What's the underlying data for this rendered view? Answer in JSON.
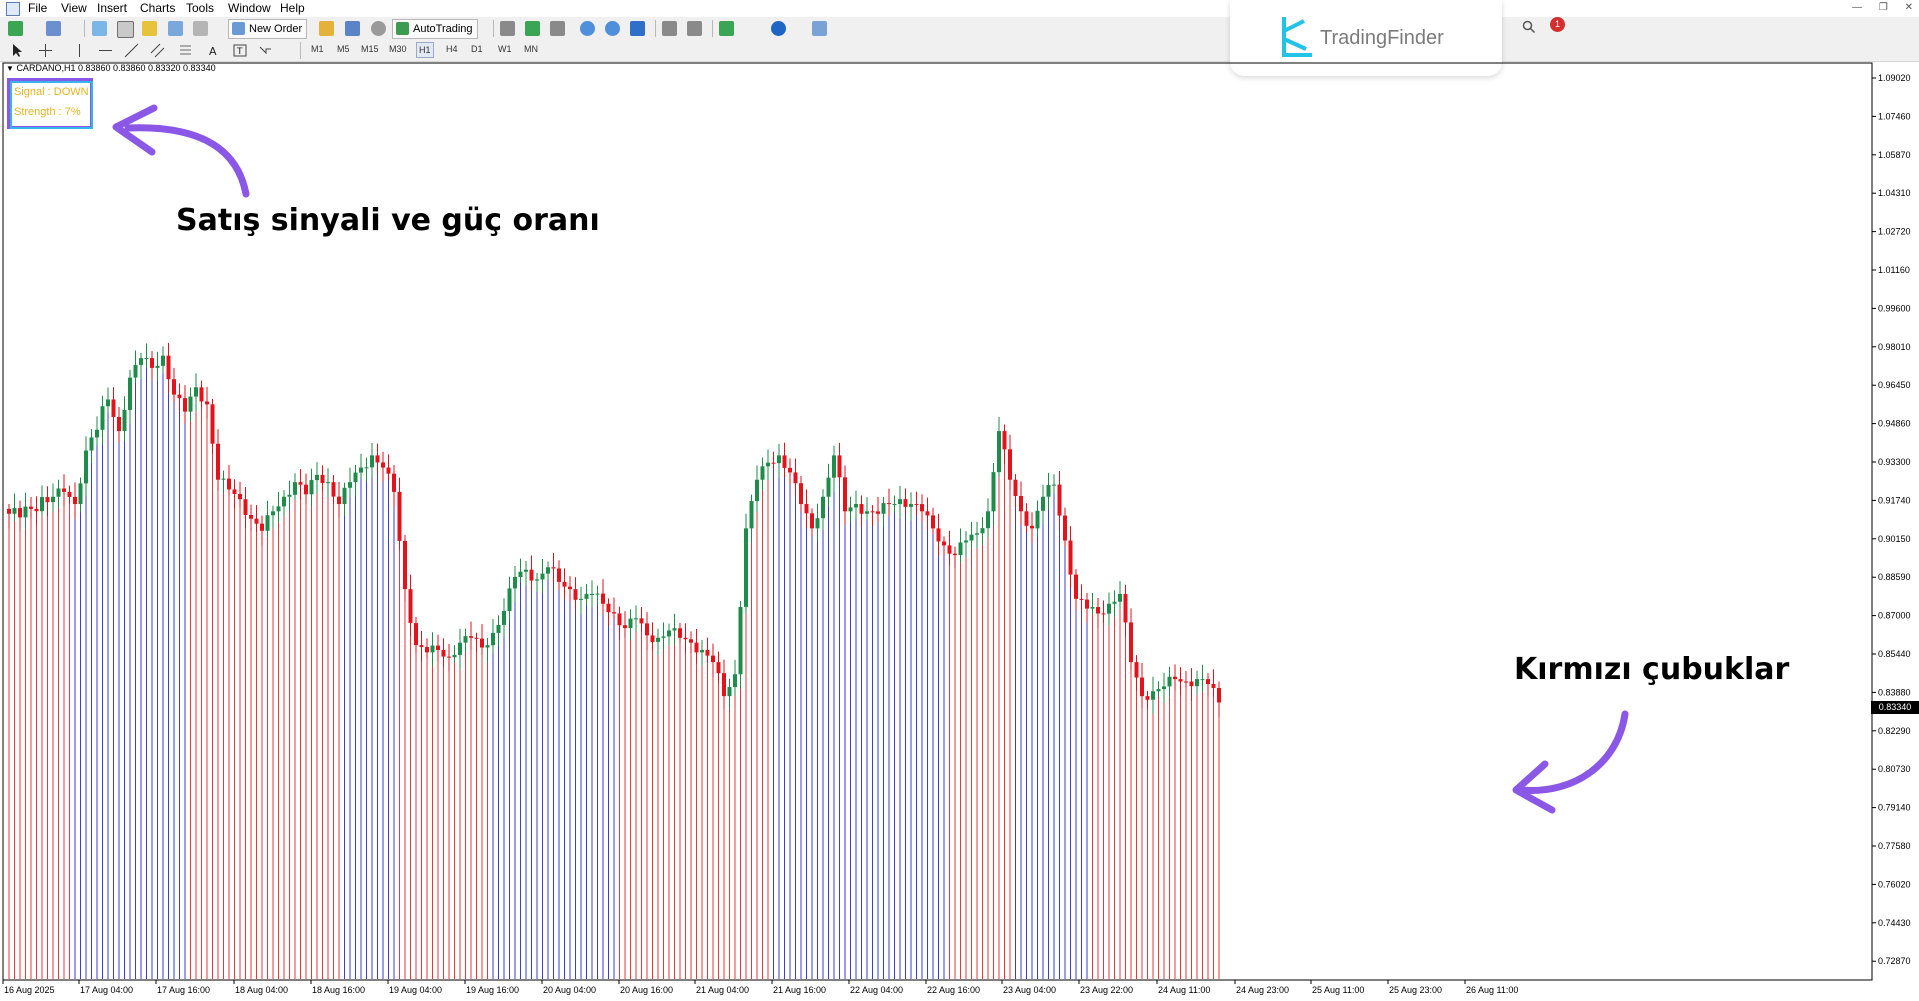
{
  "menu": {
    "items": [
      "File",
      "View",
      "Insert",
      "Charts",
      "Tools",
      "Window",
      "Help"
    ]
  },
  "toolbar": {
    "new_order_label": "New Order",
    "autotrading_label": "AutoTrading",
    "timeframes": [
      "M1",
      "M5",
      "M15",
      "M30",
      "H1",
      "H4",
      "D1",
      "W1",
      "MN"
    ],
    "active_timeframe": "H1"
  },
  "branding": {
    "logo_text": "TradingFinder"
  },
  "notifications": {
    "count": "1"
  },
  "chart": {
    "symbol_info": "CARDANO,H1  0.83860 0.83860 0.83320 0.83340",
    "current_price": "0.83340",
    "indicator": {
      "signal": "Signal : DOWN",
      "strength": "Strength : 7%"
    },
    "annotations": {
      "top": "Satış sinyali ve güç oranı",
      "right": "Kırmızı çubuklar"
    },
    "colors": {
      "bull_candle": "#1e8c4b",
      "bear_candle": "#e3121b",
      "blue_bars": "#3b3bd6",
      "red_bars": "#e8383b",
      "annotation_arrow": "#8b57e6",
      "indicator_text": "#e8b423"
    }
  },
  "chart_data": {
    "type": "candlestick",
    "y_ticks": [
      "1.09020",
      "1.07460",
      "1.05870",
      "1.04310",
      "1.02720",
      "1.01160",
      "0.99600",
      "0.98010",
      "0.96450",
      "0.94860",
      "0.93300",
      "0.91740",
      "0.90150",
      "0.88590",
      "0.87000",
      "0.85440",
      "0.83880",
      "0.82290",
      "0.80730",
      "0.79140",
      "0.77580",
      "0.76020",
      "0.74430",
      "0.72870"
    ],
    "x_ticks": [
      "16 Aug 2025",
      "17 Aug 04:00",
      "17 Aug 16:00",
      "18 Aug 04:00",
      "18 Aug 16:00",
      "19 Aug 04:00",
      "19 Aug 16:00",
      "20 Aug 04:00",
      "20 Aug 16:00",
      "21 Aug 04:00",
      "21 Aug 16:00",
      "22 Aug 04:00",
      "22 Aug 16:00",
      "23 Aug 04:00",
      "23 Aug 22:00",
      "24 Aug 11:00",
      "24 Aug 23:00",
      "25 Aug 11:00",
      "25 Aug 23:00",
      "26 Aug 11:00"
    ],
    "ylim": [
      0.7212,
      1.0948
    ],
    "anchor_closes": [
      [
        0,
        0.911
      ],
      [
        4,
        0.913
      ],
      [
        8,
        0.918
      ],
      [
        10,
        0.92
      ],
      [
        12,
        0.915
      ],
      [
        14,
        0.937
      ],
      [
        18,
        0.958
      ],
      [
        20,
        0.945
      ],
      [
        22,
        0.967
      ],
      [
        24,
        0.975
      ],
      [
        26,
        0.971
      ],
      [
        28,
        0.976
      ],
      [
        30,
        0.96
      ],
      [
        32,
        0.953
      ],
      [
        34,
        0.963
      ],
      [
        36,
        0.956
      ],
      [
        38,
        0.925
      ],
      [
        40,
        0.921
      ],
      [
        42,
        0.917
      ],
      [
        44,
        0.909
      ],
      [
        46,
        0.904
      ],
      [
        48,
        0.912
      ],
      [
        50,
        0.918
      ],
      [
        52,
        0.924
      ],
      [
        54,
        0.919
      ],
      [
        56,
        0.927
      ],
      [
        58,
        0.924
      ],
      [
        60,
        0.915
      ],
      [
        62,
        0.924
      ],
      [
        64,
        0.93
      ],
      [
        66,
        0.935
      ],
      [
        68,
        0.93
      ],
      [
        70,
        0.92
      ],
      [
        72,
        0.88
      ],
      [
        74,
        0.857
      ],
      [
        76,
        0.854
      ],
      [
        78,
        0.855
      ],
      [
        80,
        0.852
      ],
      [
        82,
        0.858
      ],
      [
        84,
        0.86
      ],
      [
        86,
        0.856
      ],
      [
        88,
        0.862
      ],
      [
        90,
        0.871
      ],
      [
        92,
        0.885
      ],
      [
        94,
        0.888
      ],
      [
        96,
        0.884
      ],
      [
        98,
        0.889
      ],
      [
        100,
        0.883
      ],
      [
        102,
        0.88
      ],
      [
        104,
        0.876
      ],
      [
        106,
        0.878
      ],
      [
        108,
        0.874
      ],
      [
        110,
        0.87
      ],
      [
        112,
        0.864
      ],
      [
        114,
        0.868
      ],
      [
        116,
        0.861
      ],
      [
        118,
        0.86
      ],
      [
        120,
        0.863
      ],
      [
        122,
        0.86
      ],
      [
        124,
        0.858
      ],
      [
        126,
        0.855
      ],
      [
        128,
        0.85
      ],
      [
        130,
        0.836
      ],
      [
        132,
        0.845
      ],
      [
        134,
        0.905
      ],
      [
        136,
        0.925
      ],
      [
        138,
        0.932
      ],
      [
        140,
        0.935
      ],
      [
        142,
        0.928
      ],
      [
        144,
        0.915
      ],
      [
        146,
        0.905
      ],
      [
        148,
        0.918
      ],
      [
        150,
        0.935
      ],
      [
        152,
        0.912
      ],
      [
        154,
        0.915
      ],
      [
        156,
        0.912
      ],
      [
        158,
        0.911
      ],
      [
        160,
        0.915
      ],
      [
        162,
        0.917
      ],
      [
        164,
        0.915
      ],
      [
        166,
        0.912
      ],
      [
        168,
        0.905
      ],
      [
        170,
        0.898
      ],
      [
        172,
        0.894
      ],
      [
        174,
        0.9
      ],
      [
        176,
        0.903
      ],
      [
        178,
        0.912
      ],
      [
        180,
        0.945
      ],
      [
        182,
        0.925
      ],
      [
        184,
        0.912
      ],
      [
        186,
        0.905
      ],
      [
        188,
        0.918
      ],
      [
        190,
        0.923
      ],
      [
        192,
        0.9
      ],
      [
        194,
        0.876
      ],
      [
        196,
        0.872
      ],
      [
        198,
        0.87
      ],
      [
        200,
        0.874
      ],
      [
        202,
        0.878
      ],
      [
        204,
        0.85
      ],
      [
        206,
        0.836
      ],
      [
        208,
        0.838
      ],
      [
        210,
        0.84
      ],
      [
        212,
        0.843
      ],
      [
        214,
        0.842
      ],
      [
        216,
        0.843
      ],
      [
        218,
        0.841
      ],
      [
        220,
        0.8334
      ]
    ],
    "color_regions": [
      {
        "color": "red",
        "from": 0,
        "to": 11
      },
      {
        "color": "blue",
        "from": 12,
        "to": 32
      },
      {
        "color": "red",
        "from": 33,
        "to": 60
      },
      {
        "color": "blue",
        "from": 61,
        "to": 70
      },
      {
        "color": "red",
        "from": 71,
        "to": 87
      },
      {
        "color": "blue",
        "from": 88,
        "to": 110
      },
      {
        "color": "red",
        "from": 111,
        "to": 138
      },
      {
        "color": "blue",
        "from": 139,
        "to": 170
      },
      {
        "color": "red",
        "from": 171,
        "to": 182
      },
      {
        "color": "blue",
        "from": 183,
        "to": 196
      },
      {
        "color": "red",
        "from": 197,
        "to": 220
      }
    ]
  }
}
